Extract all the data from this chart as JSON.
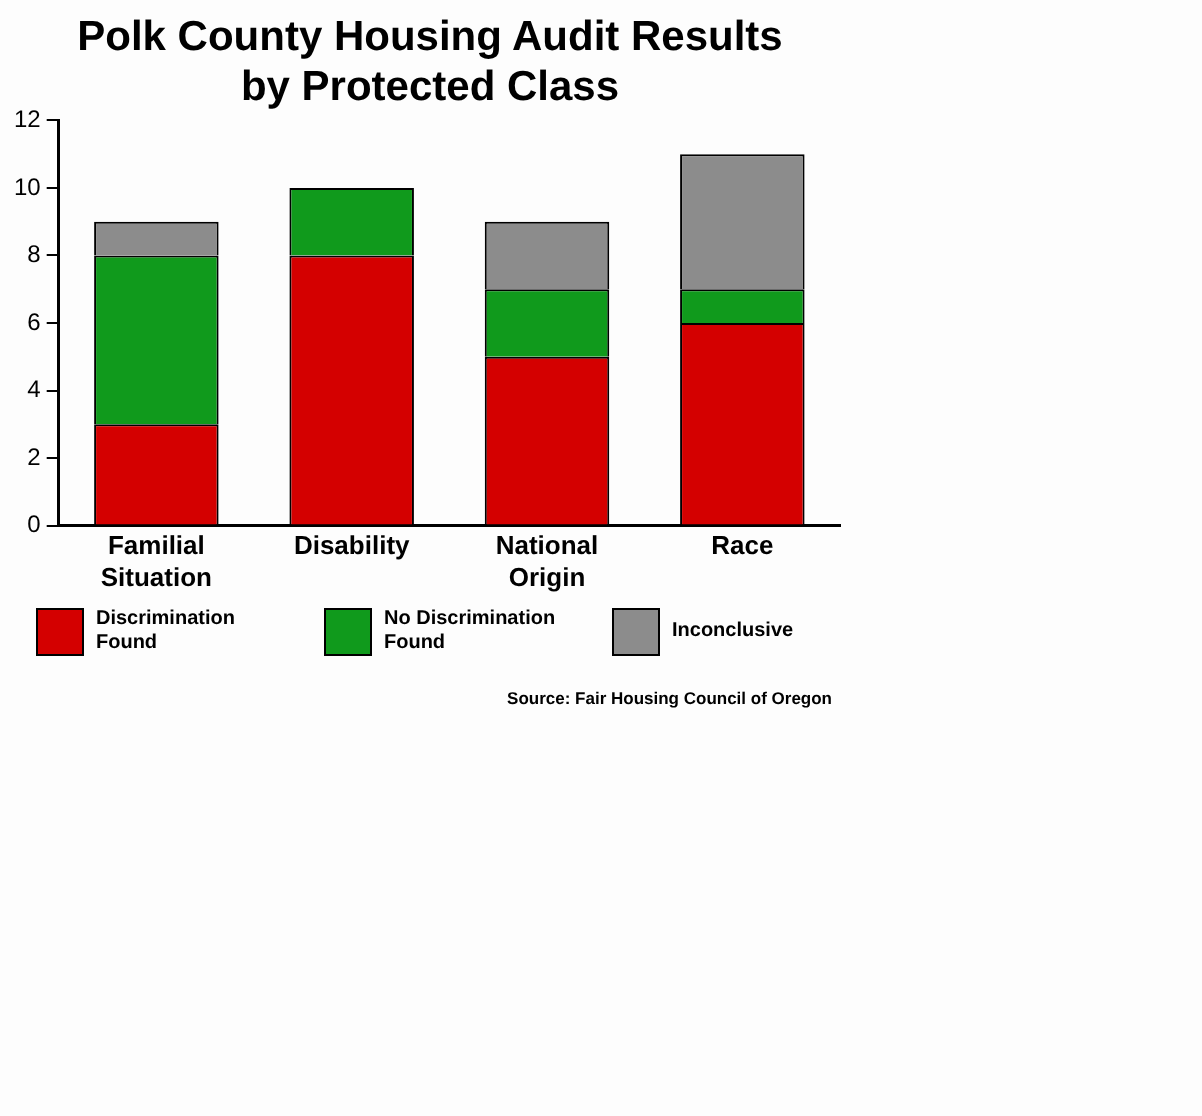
{
  "chart_data": {
    "type": "bar",
    "title": "Polk County Housing Audit Results\nby Protected Class",
    "categories": [
      "Familial Situation",
      "Disability",
      "National Origin",
      "Race"
    ],
    "stacked": true,
    "series": [
      {
        "name": "Discrimination Found",
        "color": "#d40000",
        "values": [
          3,
          8,
          5,
          6
        ]
      },
      {
        "name": "No Discrimination Found",
        "color": "#109a1c",
        "values": [
          5,
          2,
          2,
          1
        ]
      },
      {
        "name": "Inconclusive",
        "color": "#8c8c8c",
        "values": [
          1,
          0,
          2,
          4
        ]
      }
    ],
    "ylim": [
      0,
      12
    ],
    "yticks": [
      0,
      2,
      4,
      6,
      8,
      10,
      12
    ],
    "grid": false,
    "legend": "bottom",
    "annotations": [
      "Source: Fair Housing Council of Oregon"
    ]
  }
}
